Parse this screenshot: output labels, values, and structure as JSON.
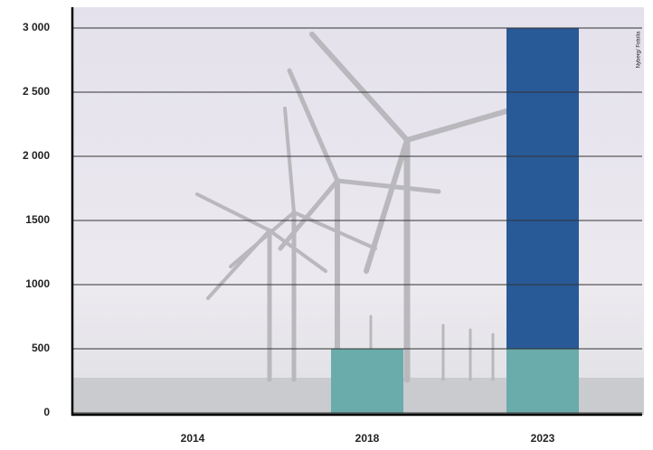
{
  "chart_data": {
    "type": "stacked-bar",
    "categories": [
      "2014",
      "2018",
      "2023"
    ],
    "series": [
      {
        "color": "#6aabab",
        "values": [
          0,
          500,
          500
        ]
      },
      {
        "color": "#285a97",
        "values": [
          0,
          0,
          2500
        ]
      }
    ],
    "ylim": [
      0,
      3000
    ],
    "yticks": [
      0,
      500,
      1000,
      1500,
      {
        "value": 2000,
        "label": "2 000"
      },
      {
        "value": 2500,
        "label": "2 500"
      },
      {
        "value": 3000,
        "label": "3 000"
      }
    ],
    "grid": true,
    "credit": "Nyberg/ Fotolia"
  }
}
